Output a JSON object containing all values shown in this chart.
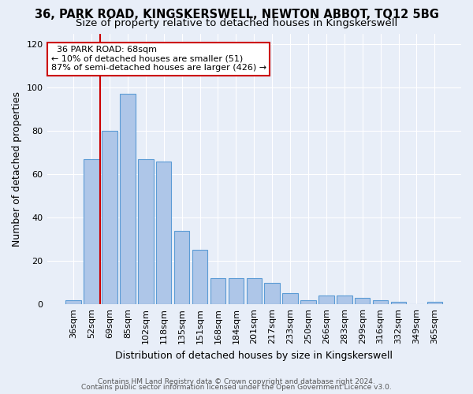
{
  "title_line1": "36, PARK ROAD, KINGSKERSWELL, NEWTON ABBOT, TQ12 5BG",
  "title_line2": "Size of property relative to detached houses in Kingskerswell",
  "xlabel": "Distribution of detached houses by size in Kingskerswell",
  "ylabel": "Number of detached properties",
  "footer_line1": "Contains HM Land Registry data © Crown copyright and database right 2024.",
  "footer_line2": "Contains public sector information licensed under the Open Government Licence v3.0.",
  "annotation_title": "36 PARK ROAD: 68sqm",
  "annotation_line1": "← 10% of detached houses are smaller (51)",
  "annotation_line2": "87% of semi-detached houses are larger (426) →",
  "bar_labels": [
    "36sqm",
    "52sqm",
    "69sqm",
    "85sqm",
    "102sqm",
    "118sqm",
    "135sqm",
    "151sqm",
    "168sqm",
    "184sqm",
    "201sqm",
    "217sqm",
    "233sqm",
    "250sqm",
    "266sqm",
    "283sqm",
    "299sqm",
    "316sqm",
    "332sqm",
    "349sqm",
    "365sqm"
  ],
  "bar_values": [
    2,
    67,
    80,
    97,
    67,
    66,
    34,
    25,
    12,
    12,
    12,
    10,
    5,
    2,
    4,
    4,
    3,
    2,
    1,
    0,
    1
  ],
  "bar_color": "#aec6e8",
  "bar_edge_color": "#5b9bd5",
  "vline_x_index": 2,
  "vline_color": "#cc0000",
  "annotation_box_color": "#ffffff",
  "annotation_box_edge": "#cc0000",
  "ylim": [
    0,
    125
  ],
  "yticks": [
    0,
    20,
    40,
    60,
    80,
    100,
    120
  ],
  "background_color": "#e8eef8",
  "grid_color": "#ffffff",
  "title_fontsize": 10.5,
  "subtitle_fontsize": 9.5,
  "axis_label_fontsize": 9,
  "tick_fontsize": 8,
  "footer_fontsize": 6.5
}
